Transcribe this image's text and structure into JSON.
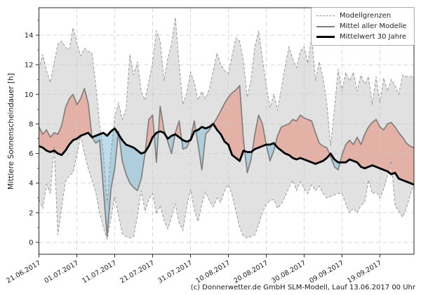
{
  "chart": {
    "footer": "(c) Donnerwetter.de GmbH SLM-Modell, Lauf 13.06.2017 00 Uhr",
    "legend_items": [
      {
        "label": "Modellgrenzen",
        "style": "dashed"
      },
      {
        "label": "Mittel aller Modelle",
        "style": "gray"
      },
      {
        "label": "Mittelwert 30 Jahre",
        "style": "black"
      }
    ],
    "colors": {
      "band_fill": "#dcdcdc",
      "red_fill": "#e78b77",
      "blue_fill": "#85c0da",
      "bound_line": "#9a9a9a",
      "mean_line": "#7f7f7f",
      "clim_line": "#000000",
      "grid_line": "#c8c8c8",
      "spine": "#262626",
      "text": "#1a1a1a"
    }
  },
  "chart_data": {
    "type": "area",
    "title": "",
    "xlabel": "",
    "ylabel": "Mittlere Sonnenscheindauer [h]",
    "grid": true,
    "legend_position": "top-right",
    "n_days": 100,
    "x_start_date": "21.06.2017",
    "x_tick_days": [
      0,
      10,
      20,
      30,
      40,
      50,
      60,
      70,
      80,
      90
    ],
    "x_tick_labels": [
      "21.06.2017",
      "01.07.2017",
      "11.07.2017",
      "21.07.2017",
      "31.07.2017",
      "10.08.2017",
      "20.08.2017",
      "30.08.2017",
      "09.09.2017",
      "19.09.2017"
    ],
    "y_ticks": [
      0,
      2,
      4,
      6,
      8,
      10,
      12,
      14
    ],
    "y_minor_ticks": [
      1,
      3,
      5,
      7,
      9,
      11,
      13,
      15
    ],
    "ylim": [
      -0.81,
      15.85
    ],
    "series": [
      {
        "name": "Modellgrenzen (obere Grenze)",
        "role": "upper",
        "values": [
          11.7,
          12.7,
          11.6,
          10.8,
          12.1,
          13.4,
          13.6,
          13.2,
          13.0,
          14.5,
          13.5,
          12.6,
          13.1,
          12.9,
          12.8,
          10.6,
          8.0,
          6.0,
          2.6,
          6.0,
          8.5,
          9.4,
          8.3,
          9.0,
          12.7,
          11.3,
          12.2,
          10.2,
          9.6,
          10.9,
          12.1,
          14.3,
          13.6,
          10.9,
          12.4,
          13.4,
          15.2,
          12.0,
          9.3,
          10.1,
          11.5,
          10.8,
          9.6,
          10.2,
          9.7,
          10.4,
          11.6,
          12.8,
          12.0,
          11.6,
          11.4,
          12.6,
          13.8,
          13.6,
          12.2,
          9.8,
          11.0,
          13.2,
          14.3,
          12.4,
          10.6,
          9.1,
          10.0,
          8.9,
          10.4,
          11.9,
          13.2,
          12.4,
          11.8,
          12.9,
          13.2,
          12.1,
          13.9,
          10.9,
          12.2,
          11.1,
          9.4,
          6.5,
          9.0,
          11.7,
          10.2,
          11.5,
          10.9,
          11.5,
          10.2,
          11.3,
          10.7,
          11.2,
          9.3,
          11.2,
          9.4,
          11.1,
          10.2,
          11.0,
          10.6,
          10.0,
          11.3,
          11.2,
          11.2,
          11.2
        ]
      },
      {
        "name": "Modellgrenzen (untere Grenze)",
        "role": "lower",
        "values": [
          2.9,
          2.3,
          3.9,
          3.3,
          6.5,
          0.5,
          2.4,
          4.1,
          4.5,
          4.7,
          5.9,
          7.2,
          6.0,
          5.0,
          4.2,
          3.4,
          2.0,
          1.0,
          0.2,
          1.6,
          3.1,
          1.8,
          0.6,
          0.4,
          0.3,
          0.4,
          1.8,
          3.5,
          2.1,
          2.9,
          3.3,
          1.9,
          2.5,
          1.5,
          0.9,
          1.7,
          2.6,
          1.3,
          0.8,
          2.4,
          3.6,
          2.2,
          1.4,
          2.6,
          3.4,
          2.8,
          2.4,
          3.0,
          2.7,
          3.5,
          3.9,
          3.2,
          2.1,
          1.0,
          0.4,
          0.3,
          0.4,
          0.5,
          1.2,
          2.0,
          2.6,
          2.8,
          2.9,
          2.3,
          2.6,
          3.1,
          3.7,
          4.2,
          3.5,
          4.1,
          3.6,
          3.3,
          3.9,
          3.5,
          3.8,
          3.3,
          3.0,
          3.1,
          3.2,
          3.3,
          3.3,
          2.6,
          2.0,
          2.3,
          2.0,
          2.5,
          2.7,
          4.2,
          3.3,
          3.4,
          3.0,
          3.6,
          4.5,
          5.5,
          2.5,
          2.1,
          1.7,
          2.3,
          3.2,
          4.0
        ]
      },
      {
        "name": "Mittel aller Modelle",
        "role": "mean",
        "values": [
          7.8,
          7.3,
          7.6,
          7.1,
          7.4,
          7.3,
          7.9,
          9.1,
          9.7,
          10.0,
          9.3,
          9.7,
          10.4,
          9.4,
          7.1,
          6.7,
          6.9,
          3.6,
          0.4,
          3.6,
          5.0,
          7.5,
          5.5,
          4.6,
          4.0,
          3.7,
          3.5,
          4.3,
          6.0,
          8.3,
          8.6,
          5.4,
          9.2,
          7.6,
          6.8,
          6.0,
          7.4,
          8.2,
          6.3,
          6.4,
          7.0,
          8.2,
          6.6,
          4.9,
          7.3,
          7.6,
          8.0,
          8.4,
          8.9,
          9.4,
          9.8,
          10.1,
          10.3,
          10.6,
          6.9,
          4.7,
          5.6,
          7.3,
          8.6,
          8.0,
          6.6,
          5.5,
          6.2,
          7.2,
          7.8,
          7.9,
          8.0,
          8.3,
          8.2,
          8.6,
          8.4,
          8.3,
          8.2,
          7.4,
          6.7,
          6.5,
          6.4,
          5.8,
          5.1,
          4.9,
          5.9,
          6.6,
          6.9,
          6.6,
          7.1,
          6.6,
          7.3,
          7.8,
          8.1,
          8.3,
          7.8,
          7.6,
          8.0,
          8.1,
          7.8,
          7.4,
          7.1,
          6.7,
          6.5,
          6.4
        ]
      },
      {
        "name": "Mittelwert 30 Jahre",
        "role": "clim",
        "values": [
          6.5,
          6.4,
          6.2,
          6.1,
          6.2,
          6.0,
          5.9,
          6.2,
          6.6,
          6.9,
          7.0,
          7.2,
          7.3,
          7.4,
          7.1,
          7.2,
          7.3,
          7.4,
          7.2,
          7.5,
          7.7,
          7.3,
          6.9,
          6.6,
          6.5,
          6.4,
          6.2,
          6.0,
          6.1,
          6.5,
          7.1,
          7.4,
          7.5,
          7.4,
          7.0,
          7.2,
          7.3,
          7.1,
          6.9,
          6.8,
          6.9,
          7.5,
          7.6,
          7.8,
          7.7,
          7.8,
          8.0,
          7.6,
          7.3,
          6.8,
          6.6,
          5.9,
          5.7,
          5.5,
          6.2,
          6.1,
          6.1,
          6.3,
          6.4,
          6.5,
          6.6,
          6.6,
          6.7,
          6.4,
          6.2,
          6.0,
          5.9,
          5.7,
          5.6,
          5.7,
          5.6,
          5.5,
          5.4,
          5.3,
          5.4,
          5.5,
          5.7,
          6.0,
          5.6,
          5.4,
          5.4,
          5.4,
          5.6,
          5.5,
          5.4,
          5.1,
          5.0,
          5.1,
          5.2,
          5.1,
          5.0,
          4.9,
          4.8,
          4.6,
          4.7,
          4.3,
          4.2,
          4.1,
          4.0,
          3.9
        ]
      }
    ]
  }
}
